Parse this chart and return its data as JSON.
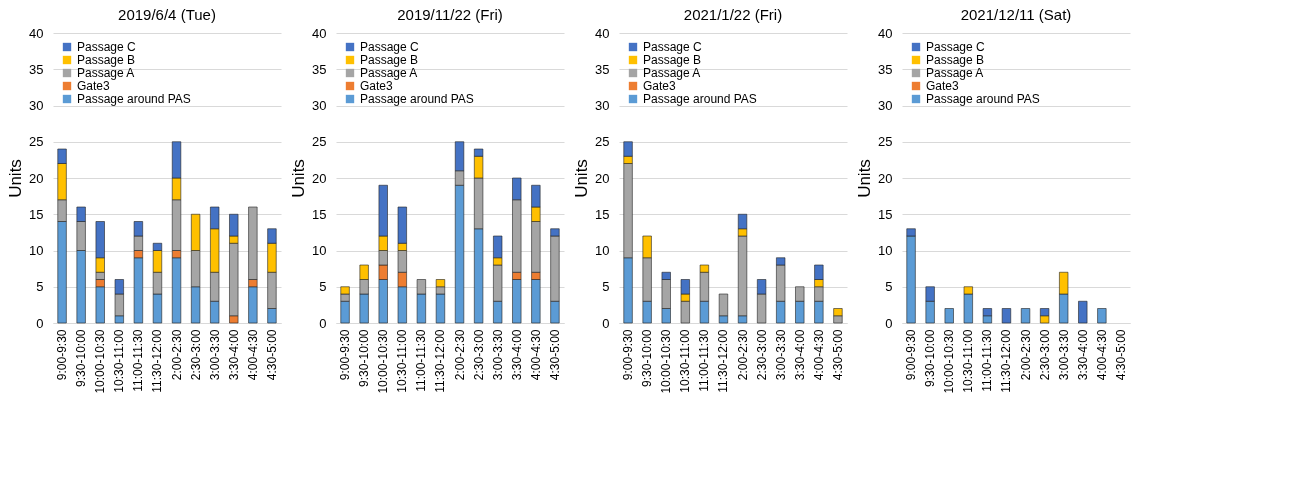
{
  "chart_data": [
    {
      "type": "bar",
      "title": "2019/6/4 (Tue)",
      "ylabel": "Units",
      "stacked": true,
      "legend": "top left",
      "grid": "y",
      "ylim": [
        0,
        40
      ],
      "yticks": [
        0,
        5,
        10,
        15,
        20,
        25,
        30,
        35,
        40
      ],
      "categories": [
        "9:00-9:30",
        "9:30-10:00",
        "10:00-10:30",
        "10:30-11:00",
        "11:00-11:30",
        "11:30-12:00",
        "2:00-2:30",
        "2:30-3:00",
        "3:00-3:30",
        "3:30-4:00",
        "4:00-4:30",
        "4:30-5:00"
      ],
      "series": [
        {
          "name": "Passage around PAS",
          "color": "#5b9bd5",
          "values": [
            14,
            10,
            5,
            1,
            9,
            4,
            9,
            5,
            3,
            0,
            5,
            2
          ]
        },
        {
          "name": "Gate3",
          "color": "#ed7d31",
          "values": [
            0,
            0,
            1,
            0,
            1,
            0,
            1,
            0,
            0,
            1,
            1,
            0
          ]
        },
        {
          "name": "Passage A",
          "color": "#a5a5a5",
          "values": [
            3,
            4,
            1,
            3,
            2,
            3,
            7,
            5,
            4,
            10,
            10,
            5
          ]
        },
        {
          "name": "Passage B",
          "color": "#ffc000",
          "values": [
            5,
            0,
            2,
            0,
            0,
            3,
            3,
            5,
            6,
            1,
            0,
            4
          ]
        },
        {
          "name": "Passage C",
          "color": "#4472c4",
          "values": [
            2,
            2,
            5,
            2,
            2,
            1,
            5,
            0,
            3,
            3,
            0,
            2
          ]
        }
      ]
    },
    {
      "type": "bar",
      "title": "2019/11/22 (Fri)",
      "ylabel": "Units",
      "stacked": true,
      "legend": "top left",
      "grid": "y",
      "ylim": [
        0,
        40
      ],
      "yticks": [
        0,
        5,
        10,
        15,
        20,
        25,
        30,
        35,
        40
      ],
      "categories": [
        "9:00-9:30",
        "9:30-10:00",
        "10:00-10:30",
        "10:30-11:00",
        "11:00-11:30",
        "11:30-12:00",
        "2:00-2:30",
        "2:30-3:00",
        "3:00-3:30",
        "3:30-4:00",
        "4:00-4:30",
        "4:30-5:00"
      ],
      "series": [
        {
          "name": "Passage around PAS",
          "color": "#5b9bd5",
          "values": [
            3,
            4,
            6,
            5,
            4,
            4,
            19,
            13,
            3,
            6,
            6,
            3
          ]
        },
        {
          "name": "Gate3",
          "color": "#ed7d31",
          "values": [
            0,
            0,
            2,
            2,
            0,
            0,
            0,
            0,
            0,
            1,
            1,
            0
          ]
        },
        {
          "name": "Passage A",
          "color": "#a5a5a5",
          "values": [
            1,
            2,
            2,
            3,
            2,
            1,
            2,
            7,
            5,
            10,
            7,
            9
          ]
        },
        {
          "name": "Passage B",
          "color": "#ffc000",
          "values": [
            1,
            2,
            2,
            1,
            0,
            1,
            0,
            3,
            1,
            0,
            2,
            0
          ]
        },
        {
          "name": "Passage C",
          "color": "#4472c4",
          "values": [
            0,
            0,
            7,
            5,
            0,
            0,
            4,
            1,
            3,
            3,
            3,
            1
          ]
        }
      ]
    },
    {
      "type": "bar",
      "title": "2021/1/22 (Fri)",
      "ylabel": "Units",
      "stacked": true,
      "legend": "top left",
      "grid": "y",
      "ylim": [
        0,
        40
      ],
      "yticks": [
        0,
        5,
        10,
        15,
        20,
        25,
        30,
        35,
        40
      ],
      "categories": [
        "9:00-9:30",
        "9:30-10:00",
        "10:00-10:30",
        "10:30-11:00",
        "11:00-11:30",
        "11:30-12:00",
        "2:00-2:30",
        "2:30-3:00",
        "3:00-3:30",
        "3:30-4:00",
        "4:00-4:30",
        "4:30-5:00"
      ],
      "series": [
        {
          "name": "Passage around PAS",
          "color": "#5b9bd5",
          "values": [
            9,
            3,
            2,
            0,
            3,
            1,
            1,
            0,
            3,
            3,
            3,
            0
          ]
        },
        {
          "name": "Gate3",
          "color": "#ed7d31",
          "values": [
            0,
            0,
            0,
            0,
            0,
            0,
            0,
            0,
            0,
            0,
            0,
            0
          ]
        },
        {
          "name": "Passage A",
          "color": "#a5a5a5",
          "values": [
            13,
            6,
            4,
            3,
            4,
            3,
            11,
            4,
            5,
            2,
            2,
            1
          ]
        },
        {
          "name": "Passage B",
          "color": "#ffc000",
          "values": [
            1,
            3,
            0,
            1,
            1,
            0,
            1,
            0,
            0,
            0,
            1,
            1
          ]
        },
        {
          "name": "Passage C",
          "color": "#4472c4",
          "values": [
            2,
            0,
            1,
            2,
            0,
            0,
            2,
            2,
            1,
            0,
            2,
            0
          ]
        }
      ]
    },
    {
      "type": "bar",
      "title": "2021/12/11 (Sat)",
      "ylabel": "Units",
      "stacked": true,
      "legend": "top left",
      "grid": "y",
      "ylim": [
        0,
        40
      ],
      "yticks": [
        0,
        5,
        10,
        15,
        20,
        25,
        30,
        35,
        40
      ],
      "categories": [
        "9:00-9:30",
        "9:30-10:00",
        "10:00-10:30",
        "10:30-11:00",
        "11:00-11:30",
        "11:30-12:00",
        "2:00-2:30",
        "2:30-3:00",
        "3:00-3:30",
        "3:30-4:00",
        "4:00-4:30",
        "4:30-5:00"
      ],
      "series": [
        {
          "name": "Passage around PAS",
          "color": "#5b9bd5",
          "values": [
            12,
            3,
            2,
            4,
            1,
            0,
            2,
            0,
            4,
            0,
            2,
            0
          ]
        },
        {
          "name": "Gate3",
          "color": "#ed7d31",
          "values": [
            0,
            0,
            0,
            0,
            0,
            0,
            0,
            0,
            0,
            0,
            0,
            0
          ]
        },
        {
          "name": "Passage A",
          "color": "#a5a5a5",
          "values": [
            0,
            0,
            0,
            0,
            0,
            0,
            0,
            0,
            0,
            0,
            0,
            0
          ]
        },
        {
          "name": "Passage B",
          "color": "#ffc000",
          "values": [
            0,
            0,
            0,
            1,
            0,
            0,
            0,
            1,
            3,
            0,
            0,
            0
          ]
        },
        {
          "name": "Passage C",
          "color": "#4472c4",
          "values": [
            1,
            2,
            0,
            0,
            1,
            2,
            0,
            1,
            0,
            3,
            0,
            0
          ]
        }
      ]
    }
  ]
}
